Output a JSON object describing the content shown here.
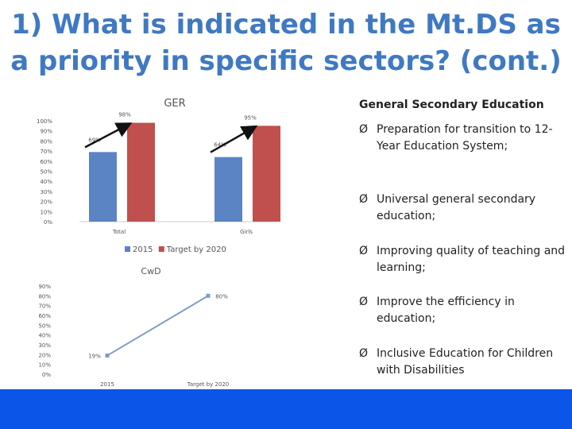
{
  "slide": {
    "title": "1) What is indicated in the Mt.DS as a priority in specific sectors? (cont.)"
  },
  "chart_data": [
    {
      "type": "bar",
      "title": "GER",
      "categories": [
        "Total",
        "Girls"
      ],
      "series": [
        {
          "name": "2015",
          "values": [
            69,
            64
          ],
          "color": "#5b84c4"
        },
        {
          "name": "Target by 2020",
          "values": [
            98,
            95
          ],
          "color": "#c0504d"
        }
      ],
      "ylim": [
        0,
        100
      ],
      "yticks": [
        "0%",
        "10%",
        "20%",
        "30%",
        "40%",
        "50%",
        "60%",
        "70%",
        "80%",
        "90%",
        "100%"
      ],
      "data_labels": [
        [
          "69%",
          "64%"
        ],
        [
          "98%",
          "95%"
        ]
      ],
      "legend": "bottom",
      "annotation": "arrows from 2015 bar to 2020 target bar"
    },
    {
      "type": "line",
      "title": "CwD",
      "categories": [
        "2015",
        "Target by 2020"
      ],
      "values": [
        19,
        80
      ],
      "data_labels": [
        "19%",
        "80%"
      ],
      "color": "#7f9cc7",
      "ylim": [
        0,
        90
      ],
      "yticks": [
        "0%",
        "10%",
        "20%",
        "30%",
        "40%",
        "50%",
        "60%",
        "70%",
        "80%",
        "90%"
      ]
    }
  ],
  "panel": {
    "title": "General Secondary Education",
    "arrow_glyph": "Ø",
    "items": [
      "Preparation for transition to 12-Year Education System;",
      "Universal general secondary education;",
      "Improving quality of teaching and learning;",
      "Improve the efficiency in education;",
      "Inclusive Education for Children with Disabilities"
    ]
  }
}
